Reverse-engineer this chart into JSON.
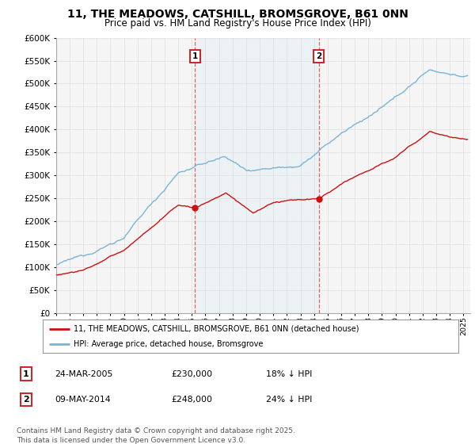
{
  "title": "11, THE MEADOWS, CATSHILL, BROMSGROVE, B61 0NN",
  "subtitle": "Price paid vs. HM Land Registry's House Price Index (HPI)",
  "ylim": [
    0,
    600000
  ],
  "xlim_start": 1995.0,
  "xlim_end": 2025.5,
  "transaction1_x": 2005.23,
  "transaction1_y": 230000,
  "transaction2_x": 2014.36,
  "transaction2_y": 248000,
  "hpi_color": "#7ab4d8",
  "price_color": "#cc1111",
  "vline_color": "#dd6666",
  "background_color": "#ffffff",
  "plot_bg_color": "#f5f5f5",
  "grid_color": "#dddddd",
  "legend_line1": "11, THE MEADOWS, CATSHILL, BROMSGROVE, B61 0NN (detached house)",
  "legend_line2": "HPI: Average price, detached house, Bromsgrove",
  "table_row1": [
    "1",
    "24-MAR-2005",
    "£230,000",
    "18% ↓ HPI"
  ],
  "table_row2": [
    "2",
    "09-MAY-2014",
    "£248,000",
    "24% ↓ HPI"
  ],
  "footer": "Contains HM Land Registry data © Crown copyright and database right 2025.\nThis data is licensed under the Open Government Licence v3.0.",
  "title_fontsize": 10,
  "subtitle_fontsize": 8.5,
  "tick_fontsize": 7.5,
  "footer_fontsize": 6.5
}
